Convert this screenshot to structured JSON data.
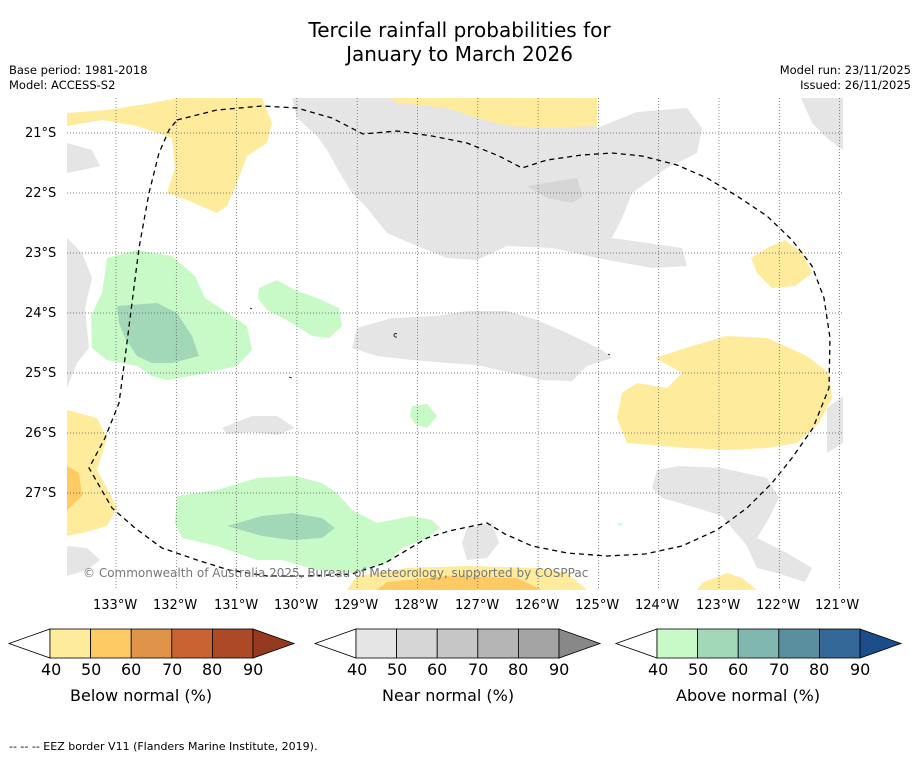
{
  "title_line1": "Tercile rainfall probabilities for",
  "title_line2": "January to March 2026",
  "meta_left": [
    "Base period: 1981-2018",
    "Model: ACCESS-S2"
  ],
  "meta_right": [
    "Model run: 23/11/2025",
    "Issued: 26/11/2025"
  ],
  "map": {
    "lat_labels": [
      "21°S",
      "22°S",
      "23°S",
      "24°S",
      "25°S",
      "26°S",
      "27°S"
    ],
    "lon_labels": [
      "133°W",
      "132°W",
      "131°W",
      "130°W",
      "129°W",
      "128°W",
      "127°W",
      "126°W",
      "125°W",
      "124°W",
      "123°W",
      "122°W",
      "121°W"
    ],
    "copyright": "© Commonwealth of Australia 2025, Bureau of Meteorology, supported by COSPPac"
  },
  "colorbars": [
    {
      "label": "Below normal (%)",
      "ticks": [
        "40",
        "50",
        "60",
        "70",
        "80",
        "90"
      ],
      "colors": [
        "#ffeb9c",
        "#fdca63",
        "#e0944a",
        "#c96432",
        "#ac4a27",
        "#953a21"
      ]
    },
    {
      "label": "Near normal (%)",
      "ticks": [
        "40",
        "50",
        "60",
        "70",
        "80",
        "90"
      ],
      "colors": [
        "#e5e5e5",
        "#d6d6d6",
        "#c6c6c6",
        "#b5b5b5",
        "#a4a4a4",
        "#888888"
      ]
    },
    {
      "label": "Above normal (%)",
      "ticks": [
        "40",
        "50",
        "60",
        "70",
        "80",
        "90"
      ],
      "colors": [
        "#c8fac8",
        "#a2d8b8",
        "#80b7b0",
        "#5a8fa0",
        "#346898",
        "#1d4d88"
      ]
    }
  ],
  "eez_note": "--  --  -- EEZ border V11 (Flanders Marine Institute, 2019).",
  "colors": {
    "below": "#ffeb9c",
    "near": "#e5e5e5",
    "above": "#c8fac8",
    "above_dark": "#a2d8b8"
  }
}
